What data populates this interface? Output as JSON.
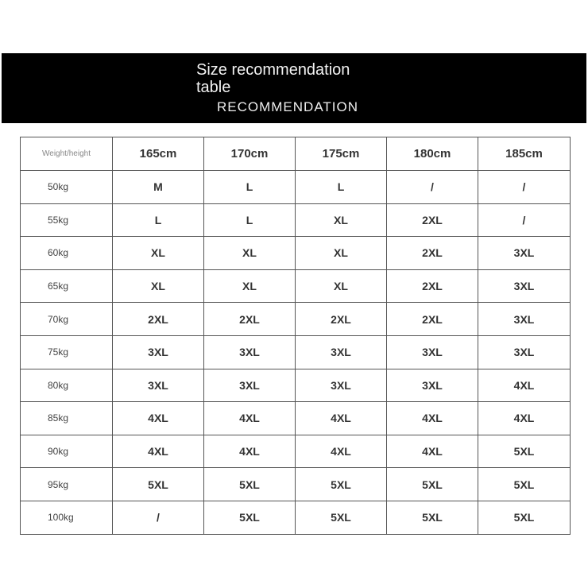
{
  "banner": {
    "title": "Size recommendation table",
    "subtitle": "RECOMMENDATION"
  },
  "table": {
    "corner": "Weight/height",
    "heights": [
      "165cm",
      "170cm",
      "175cm",
      "180cm",
      "185cm"
    ],
    "rows": [
      {
        "weight": "50kg",
        "sizes": [
          "M",
          "L",
          "L",
          "/",
          "/"
        ]
      },
      {
        "weight": "55kg",
        "sizes": [
          "L",
          "L",
          "XL",
          "2XL",
          "/"
        ]
      },
      {
        "weight": "60kg",
        "sizes": [
          "XL",
          "XL",
          "XL",
          "2XL",
          "3XL"
        ]
      },
      {
        "weight": "65kg",
        "sizes": [
          "XL",
          "XL",
          "XL",
          "2XL",
          "3XL"
        ]
      },
      {
        "weight": "70kg",
        "sizes": [
          "2XL",
          "2XL",
          "2XL",
          "2XL",
          "3XL"
        ]
      },
      {
        "weight": "75kg",
        "sizes": [
          "3XL",
          "3XL",
          "3XL",
          "3XL",
          "3XL"
        ]
      },
      {
        "weight": "80kg",
        "sizes": [
          "3XL",
          "3XL",
          "3XL",
          "3XL",
          "4XL"
        ]
      },
      {
        "weight": "85kg",
        "sizes": [
          "4XL",
          "4XL",
          "4XL",
          "4XL",
          "4XL"
        ]
      },
      {
        "weight": "90kg",
        "sizes": [
          "4XL",
          "4XL",
          "4XL",
          "4XL",
          "5XL"
        ]
      },
      {
        "weight": "95kg",
        "sizes": [
          "5XL",
          "5XL",
          "5XL",
          "5XL",
          "5XL"
        ]
      },
      {
        "weight": "100kg",
        "sizes": [
          "/",
          "5XL",
          "5XL",
          "5XL",
          "5XL"
        ]
      }
    ]
  }
}
